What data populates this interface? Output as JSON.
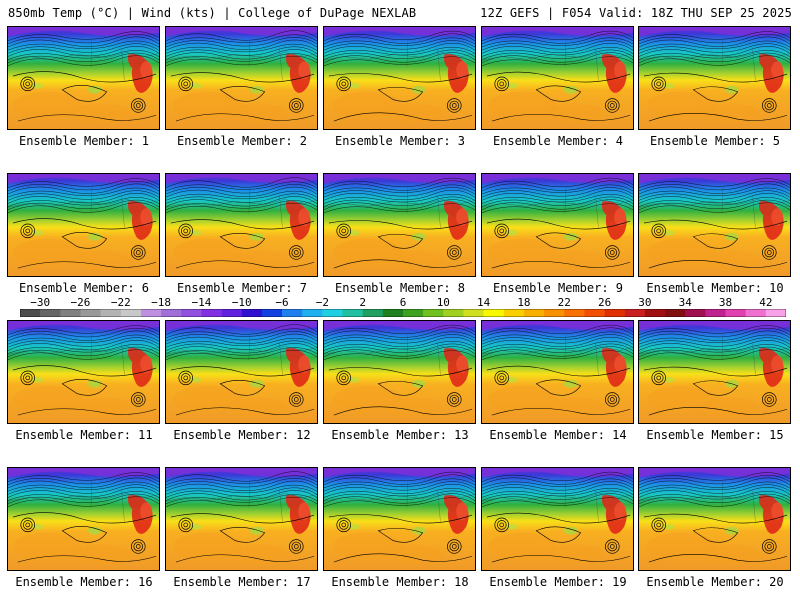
{
  "header": {
    "title_left": "850mb Temp (°C) | Wind (kts) | College of DuPage NEXLAB",
    "title_right": "12Z GEFS | F054 Valid: 18Z THU SEP 25 2025"
  },
  "members": [
    {
      "label": "Ensemble Member: 1"
    },
    {
      "label": "Ensemble Member: 2"
    },
    {
      "label": "Ensemble Member: 3"
    },
    {
      "label": "Ensemble Member: 4"
    },
    {
      "label": "Ensemble Member: 5"
    },
    {
      "label": "Ensemble Member: 6"
    },
    {
      "label": "Ensemble Member: 7"
    },
    {
      "label": "Ensemble Member: 8"
    },
    {
      "label": "Ensemble Member: 9"
    },
    {
      "label": "Ensemble Member: 10"
    },
    {
      "label": "Ensemble Member: 11"
    },
    {
      "label": "Ensemble Member: 12"
    },
    {
      "label": "Ensemble Member: 13"
    },
    {
      "label": "Ensemble Member: 14"
    },
    {
      "label": "Ensemble Member: 15"
    },
    {
      "label": "Ensemble Member: 16"
    },
    {
      "label": "Ensemble Member: 17"
    },
    {
      "label": "Ensemble Member: 18"
    },
    {
      "label": "Ensemble Member: 19"
    },
    {
      "label": "Ensemble Member: 20"
    }
  ],
  "colorbar": {
    "min": -32,
    "max": 44,
    "step": 2,
    "labels": [
      "-30",
      "-26",
      "-22",
      "-18",
      "-14",
      "-10",
      "-6",
      "-2",
      "2",
      "6",
      "10",
      "14",
      "18",
      "22",
      "26",
      "30",
      "34",
      "38",
      "42"
    ],
    "colors": [
      "#4d4d4d",
      "#666666",
      "#808080",
      "#999999",
      "#b3b3b3",
      "#c8c8c8",
      "#c090e0",
      "#a070d8",
      "#9050e0",
      "#8030e0",
      "#6020e0",
      "#3010d0",
      "#1040e0",
      "#2080f0",
      "#20b0f0",
      "#20d0e0",
      "#20c0a0",
      "#20a060",
      "#208020",
      "#40a020",
      "#70c020",
      "#a0d020",
      "#d0e020",
      "#f8f800",
      "#f8d000",
      "#f8b000",
      "#f89000",
      "#f87000",
      "#f05000",
      "#e03000",
      "#c82020",
      "#a01010",
      "#801010",
      "#a01050",
      "#c02090",
      "#e040b0",
      "#f070d0",
      "#f8a0e8"
    ]
  }
}
